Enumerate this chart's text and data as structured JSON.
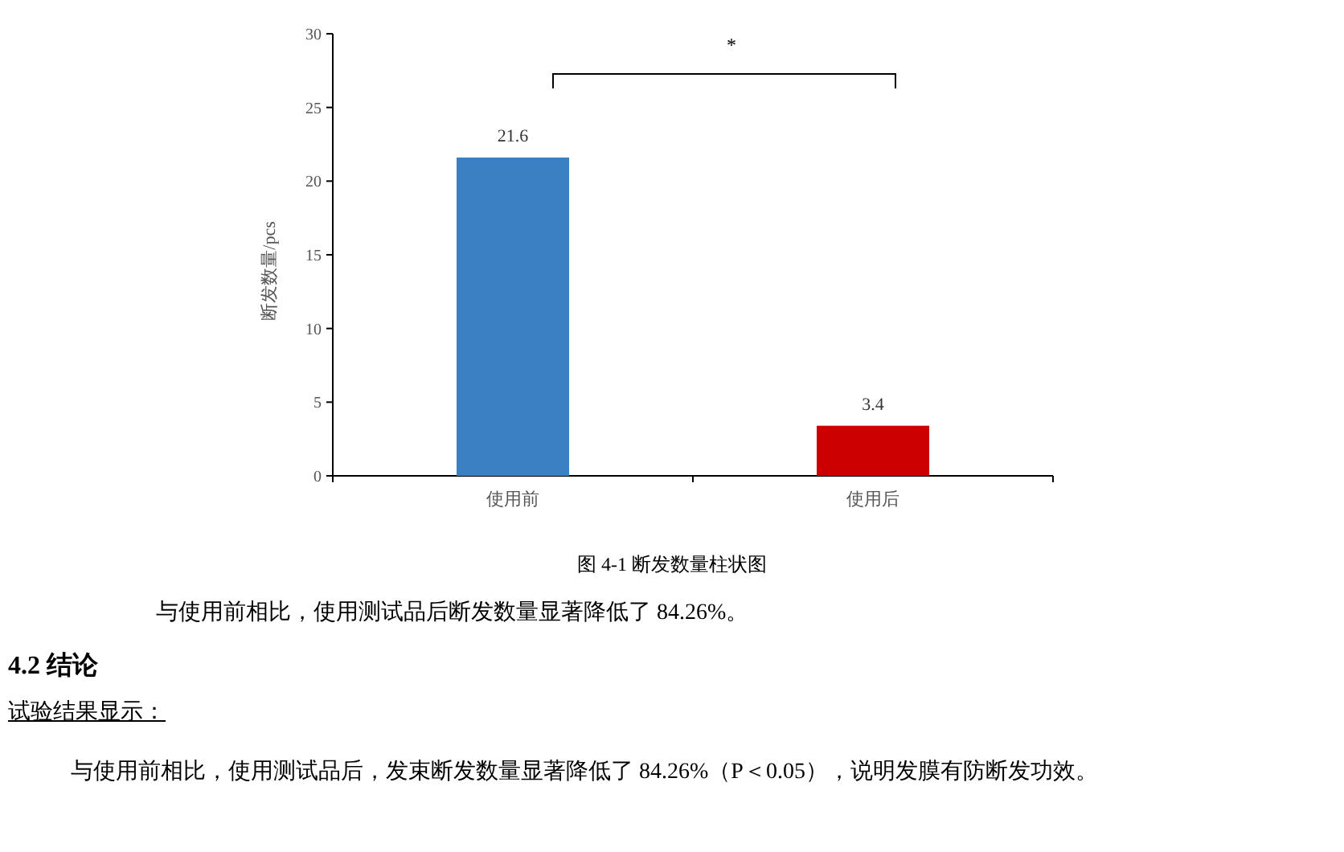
{
  "chart_data": {
    "type": "bar",
    "ylabel": "断发数量/pcs",
    "categories": [
      "使用前",
      "使用后"
    ],
    "colors": [
      "#3b80c3",
      "#cc0000"
    ],
    "values": [
      21.6,
      3.4
    ],
    "data_labels": true,
    "ylim": [
      0,
      30
    ],
    "yticks": [
      0,
      5,
      10,
      15,
      20,
      25,
      30
    ],
    "annotations": [
      "*",
      "图 4-1 断发数量柱状图",
      "与使用前相比，使用测试品后断发数量显著降低了 84.26%。",
      "4.2  结论",
      "试验结果显示：",
      "与使用前相比，使用测试品后，发束断发数量显著降低了 84.26%（P＜0.05），说明发膜有防断发功效。"
    ]
  }
}
